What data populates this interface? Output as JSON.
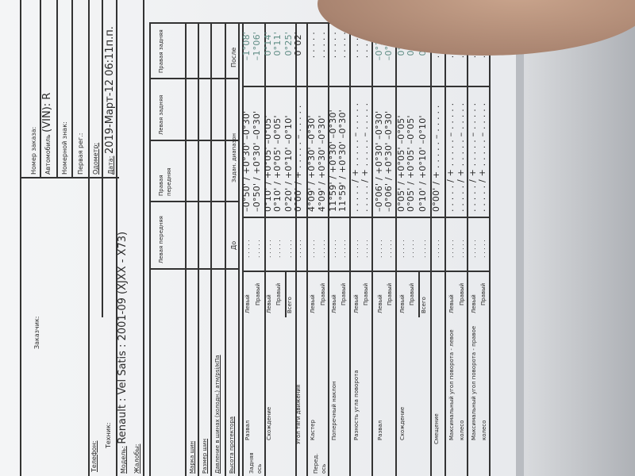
{
  "header": {
    "customer_label": "Заказчик:",
    "order_label": "Номер заказа:",
    "vin_label": "Автомобиль",
    "vin_value": "(VIN): R",
    "plate_label": "Номерной знак:",
    "first_reg_label": "Первая рег.:",
    "odometer_label": "Одометр:",
    "date_label": "Дата:",
    "date_value": "2019-Март-12 06:11п.п.",
    "phone_label": "Телефон:",
    "technician_label": "Техник:",
    "model_label": "Модель:",
    "model_value": "Renault : Vel Satis : 2001-09 (XJXX - X73)",
    "complaints_label": "Жалобы:"
  },
  "tires": {
    "columns": [
      "Левая передняя",
      "Правая передняя",
      "Левая задняя",
      "Правая задняя"
    ],
    "rows": [
      "Марка шин",
      "Размер шин",
      "Давление в шинах (холодн.) атм/psi/кПа",
      "Высота протектора"
    ]
  },
  "alignment": {
    "headers": {
      "before": "До",
      "spec": "Задан. диапазон",
      "after": "После"
    },
    "axles": [
      {
        "label": "Задняя ось"
      },
      {
        "label": "Перед. ось"
      }
    ],
    "groups": [
      {
        "label": "Развал"
      },
      {
        "label": "Схождение"
      },
      {
        "label": "Угол тяги движения"
      },
      {
        "label": "Кастер"
      },
      {
        "label": "Поперечный наклон"
      },
      {
        "label": "Разность угла поворота"
      },
      {
        "label": "Развал"
      },
      {
        "label": "Схождение"
      },
      {
        "label": "Смещение"
      },
      {
        "label": "Максимальный угол поворота - левое колесо"
      },
      {
        "label": "Максимальный угол поворота - правое колесо"
      }
    ],
    "rows": [
      {
        "side": "Левый",
        "before": ". . . . .",
        "spec": "–0°50' / +0°30' –0°30'",
        "after": "–1°08'",
        "in_spec": true
      },
      {
        "side": "Правый",
        "before": ". . . . .",
        "spec": "–0°50' / +0°30' –0°30'",
        "after": "–1°06'",
        "in_spec": true
      },
      {
        "side": "Левый",
        "before": ". . . . .",
        "spec": "0°10' / +0°05' –0°05'",
        "after": "0°14'",
        "in_spec": true
      },
      {
        "side": "Правый",
        "before": ". . . . .",
        "spec": "0°10' / +0°05' –0°05'",
        "after": "0°11'",
        "in_spec": true
      },
      {
        "side": "Всего",
        "before": ". . . . .",
        "spec": "0°20' / +0°10' –0°10'",
        "after": "0°25'",
        "in_spec": true
      },
      {
        "side": "",
        "before": ". . . . .",
        "spec": "0°00' / + . . . . . – . . . . .",
        "after": "0°02'",
        "in_spec": false
      },
      {
        "side": "Левый",
        "before": ". . . . .",
        "spec": "4°09' / +0°30' –0°30'",
        "after": ". . . . .",
        "in_spec": false
      },
      {
        "side": "Правый",
        "before": ". . . . .",
        "spec": "4°09' / +0°30' –0°30'",
        "after": ". . . . .",
        "in_spec": false
      },
      {
        "side": "Левый",
        "before": ". . . . .",
        "spec": "11°59' / +0°30' –0°30'",
        "after": ". . . . .",
        "in_spec": false
      },
      {
        "side": "Правый",
        "before": ". . . . .",
        "spec": "11°59' / +0°30' –0°30'",
        "after": ". . . . .",
        "in_spec": false
      },
      {
        "side": "Левый",
        "before": ". . . . .",
        "spec": ". . . . . / + . . . . . – . . . . .",
        "after": ". . . . .",
        "in_spec": false
      },
      {
        "side": "Правый",
        "before": ". . . . .",
        "spec": ". . . . . / + . . . . . – . . . . .",
        "after": ". . . . .",
        "in_spec": false
      },
      {
        "side": "Левый",
        "before": ". . . . .",
        "spec": "–0°06' / +0°30' –0°30'",
        "after": "–0°16'",
        "in_spec": true
      },
      {
        "side": "Правый",
        "before": ". . . . .",
        "spec": "–0°06' / +0°30' –0°30'",
        "after": "–0°21'",
        "in_spec": true
      },
      {
        "side": "Левый",
        "before": ". . . . .",
        "spec": "0°05' / +0°05' –0°05'",
        "after": "0°07'",
        "in_spec": true
      },
      {
        "side": "Правый",
        "before": ". . . . .",
        "spec": "0°05' / +0°05' –0°05'",
        "after": "0°06'",
        "in_spec": true
      },
      {
        "side": "Всего",
        "before": ". . . . .",
        "spec": "0°10' / +0°10' –0°10'",
        "after": "0°13'",
        "in_spec": true
      },
      {
        "side": "",
        "before": ". . . . .",
        "spec": "0°00' / + . . . . . – . . . . .",
        "after": ". . . . .",
        "in_spec": false
      },
      {
        "side": "Левый",
        "before": ". . . . .",
        "spec": ". . . . . / + . . . . . – . . . . .",
        "after": ". . . . .",
        "in_spec": false
      },
      {
        "side": "Правый",
        "before": ". . . . .",
        "spec": ". . . . . / + . . . . . – . . . . .",
        "after": ". . . . .",
        "in_spec": false
      },
      {
        "side": "Левый",
        "before": ". . . . .",
        "spec": ". . . . . / + . . . . . – . . . . .",
        "after": ". . . . .",
        "in_spec": false
      },
      {
        "side": "Правый",
        "before": ". . . . .",
        "spec": ". . . . . / + . . . . . – . . . . .",
        "after": ". . . . .",
        "in_spec": false
      }
    ],
    "colors": {
      "after_in_spec": "#5e8c84",
      "text": "#2a2a2a"
    }
  }
}
